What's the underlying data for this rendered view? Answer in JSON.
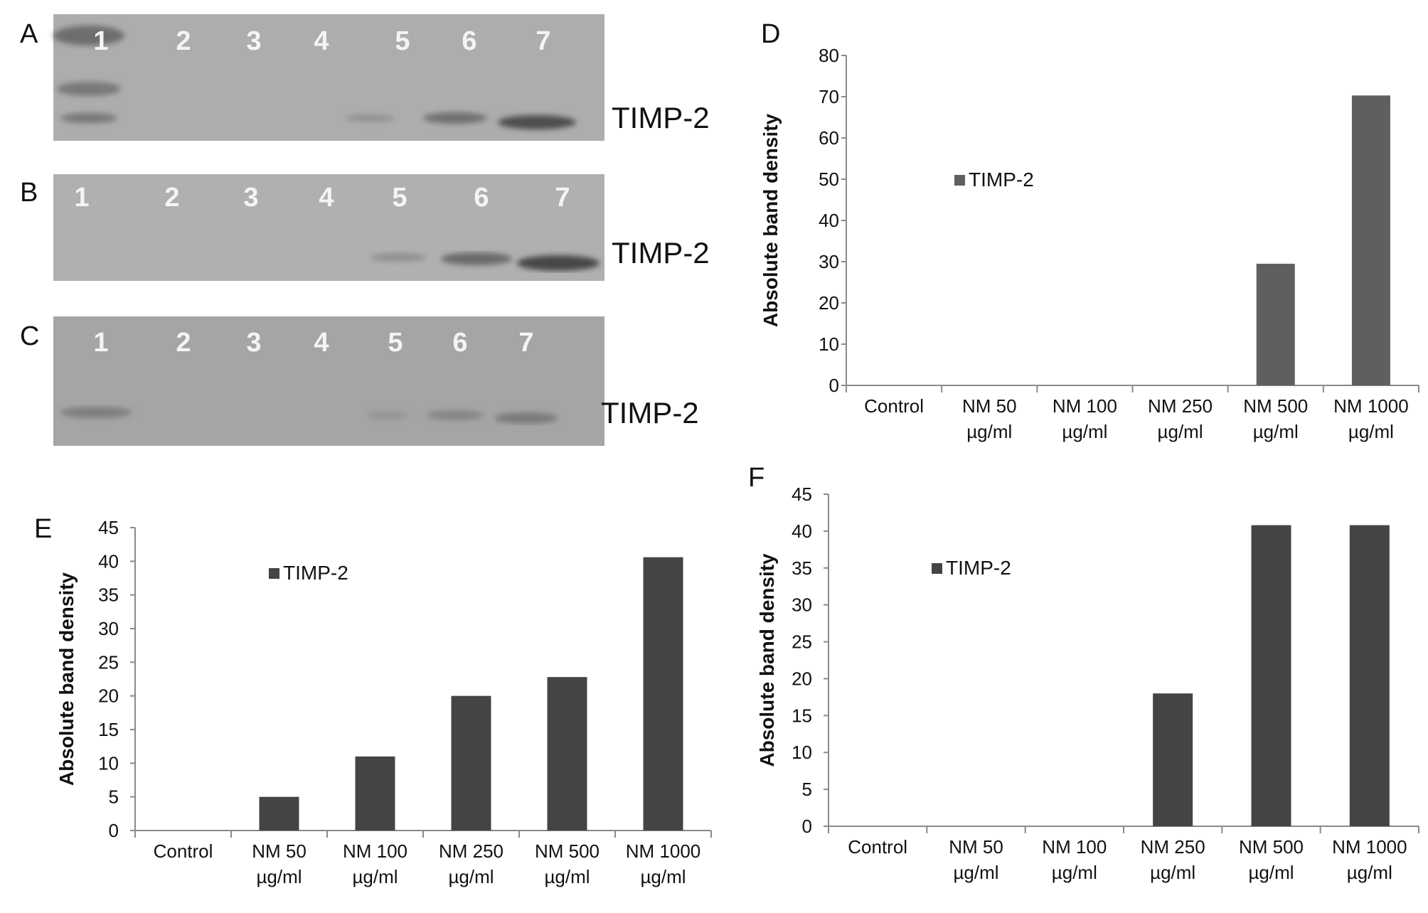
{
  "gels": [
    {
      "letter": "A",
      "lanes": [
        "1",
        "2",
        "3",
        "4",
        "5",
        "6",
        "7"
      ],
      "label": "TIMP-2"
    },
    {
      "letter": "B",
      "lanes": [
        "1",
        "2",
        "3",
        "4",
        "5",
        "6",
        "7"
      ],
      "label": "TIMP-2"
    },
    {
      "letter": "C",
      "lanes": [
        "1",
        "2",
        "3",
        "4",
        "5",
        "6",
        "7"
      ],
      "label": "TIMP-2"
    }
  ],
  "chart_data": [
    {
      "panel": "D",
      "type": "bar",
      "categories": [
        [
          "Control"
        ],
        [
          "NM 50",
          "µg/ml"
        ],
        [
          "NM 100",
          "µg/ml"
        ],
        [
          "NM 250",
          "µg/ml"
        ],
        [
          "NM 500",
          "µg/ml"
        ],
        [
          "NM 1000",
          "µg/ml"
        ]
      ],
      "series": [
        {
          "name": "TIMP-2",
          "values": [
            0,
            0,
            0,
            0,
            29.5,
            70.3
          ],
          "color": "#5f5f5f"
        }
      ],
      "ylabel": "Absolute band density",
      "ylim": [
        0,
        80
      ],
      "yticks": [
        0,
        10,
        20,
        30,
        40,
        50,
        60,
        70,
        80
      ],
      "legend_position": "middle-left"
    },
    {
      "panel": "E",
      "type": "bar",
      "categories": [
        [
          "Control"
        ],
        [
          "NM 50",
          "µg/ml"
        ],
        [
          "NM 100",
          "µg/ml"
        ],
        [
          "NM 250",
          "µg/ml"
        ],
        [
          "NM 500",
          "µg/ml"
        ],
        [
          "NM 1000",
          "µg/ml"
        ]
      ],
      "series": [
        {
          "name": "TIMP-2",
          "values": [
            0,
            5,
            11,
            20,
            22.8,
            40.6
          ],
          "color": "#444444"
        }
      ],
      "ylabel": "Absolute band density",
      "ylim": [
        0,
        45
      ],
      "yticks": [
        0,
        5,
        10,
        15,
        20,
        25,
        30,
        35,
        40,
        45
      ],
      "legend_position": "top-middle"
    },
    {
      "panel": "F",
      "type": "bar",
      "categories": [
        [
          "Control"
        ],
        [
          "NM 50",
          "µg/ml"
        ],
        [
          "NM 100",
          "µg/ml"
        ],
        [
          "NM 250",
          "µg/ml"
        ],
        [
          "NM 500",
          "µg/ml"
        ],
        [
          "NM 1000",
          "µg/ml"
        ]
      ],
      "series": [
        {
          "name": "TIMP-2",
          "values": [
            0,
            0,
            0,
            18,
            40.8,
            40.8
          ],
          "color": "#444444"
        }
      ],
      "ylabel": "Absolute band density",
      "ylim": [
        0,
        45
      ],
      "yticks": [
        0,
        5,
        10,
        15,
        20,
        25,
        30,
        35,
        40,
        45
      ],
      "legend_position": "top-left"
    }
  ]
}
